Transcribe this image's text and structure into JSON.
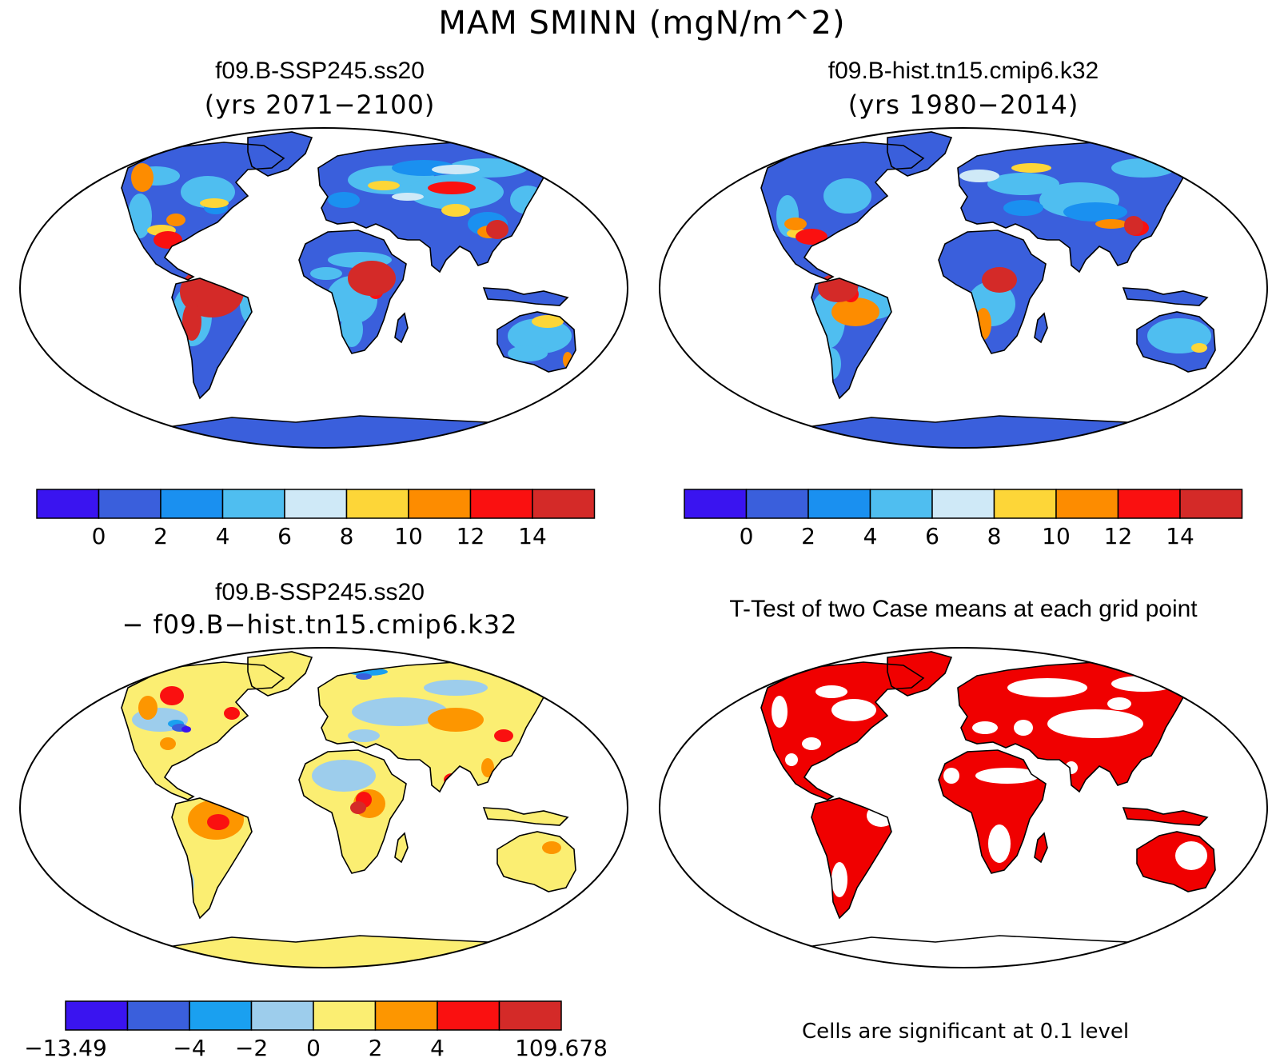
{
  "title": "MAM SMINN (mgN/m^2)",
  "panels": [
    {
      "id": "p1",
      "title": "f09.B-SSP245.ss20",
      "subtitle": "(yrs 2071−2100)"
    },
    {
      "id": "p2",
      "title": "f09.B-hist.tn15.cmip6.k32",
      "subtitle": "(yrs 1980−2014)"
    },
    {
      "id": "p3",
      "title": "f09.B-SSP245.ss20",
      "subtitle": "− f09.B−hist.tn15.cmip6.k32"
    },
    {
      "id": "p4",
      "title": "T-Test of two Case means at each grid point",
      "subtitle": ""
    }
  ],
  "colorbars": {
    "abs": {
      "colors": [
        "#3a14f0",
        "#3a5fdc",
        "#1a90f0",
        "#4fbef0",
        "#cfe9f7",
        "#fdd638",
        "#fd8c00",
        "#fa1010",
        "#d42a28"
      ],
      "labels": [
        "0",
        "2",
        "4",
        "6",
        "8",
        "10",
        "12",
        "14"
      ]
    },
    "diff": {
      "colors": [
        "#3a14f0",
        "#3a5fdc",
        "#1aa0f0",
        "#9dcdec",
        "#fbee72",
        "#fd9600",
        "#fa1010",
        "#d42a28"
      ],
      "labels": [
        "−13.49",
        "",
        "−4",
        "−2",
        "0",
        "2",
        "4",
        "",
        "109.678"
      ]
    }
  },
  "significance": {
    "color": "#f00000",
    "note": "Cells are significant at 0.1 level"
  }
}
